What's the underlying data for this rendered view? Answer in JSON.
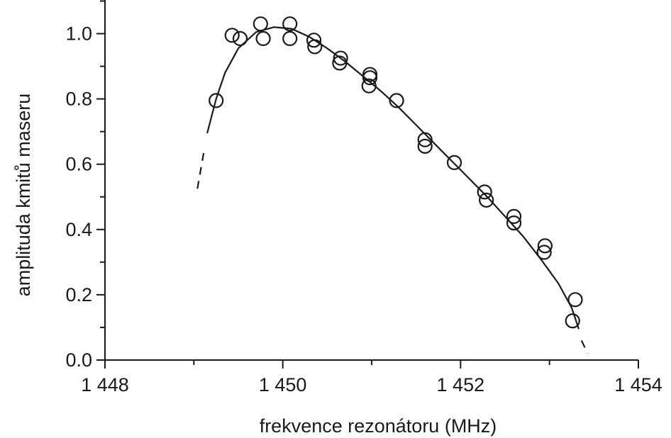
{
  "chart_data": {
    "type": "scatter",
    "xlabel": "frekvence rezonátoru (MHz)",
    "ylabel": "amplituda kmitů maseru",
    "xlim": [
      1448,
      1454
    ],
    "ylim": [
      0.0,
      1.1
    ],
    "x_ticks": [
      1448,
      1450,
      1452,
      1454
    ],
    "x_tick_labels": [
      "1 448",
      "1 450",
      "1 452",
      "1 454"
    ],
    "y_ticks": [
      0.0,
      0.2,
      0.4,
      0.6,
      0.8,
      1.0
    ],
    "y_tick_labels": [
      "0.0",
      "0.2",
      "0.4",
      "0.6",
      "0.8",
      "1.0"
    ],
    "grid": false,
    "marker": "open-circle",
    "points": [
      {
        "x": 1449.25,
        "y": 0.795
      },
      {
        "x": 1449.43,
        "y": 0.995
      },
      {
        "x": 1449.52,
        "y": 0.985
      },
      {
        "x": 1449.75,
        "y": 1.03
      },
      {
        "x": 1449.78,
        "y": 0.985
      },
      {
        "x": 1450.08,
        "y": 1.03
      },
      {
        "x": 1450.08,
        "y": 0.985
      },
      {
        "x": 1450.35,
        "y": 0.98
      },
      {
        "x": 1450.36,
        "y": 0.96
      },
      {
        "x": 1450.65,
        "y": 0.925
      },
      {
        "x": 1450.64,
        "y": 0.91
      },
      {
        "x": 1450.98,
        "y": 0.875
      },
      {
        "x": 1450.98,
        "y": 0.865
      },
      {
        "x": 1450.97,
        "y": 0.84
      },
      {
        "x": 1451.28,
        "y": 0.795
      },
      {
        "x": 1451.6,
        "y": 0.675
      },
      {
        "x": 1451.6,
        "y": 0.655
      },
      {
        "x": 1451.93,
        "y": 0.605
      },
      {
        "x": 1452.27,
        "y": 0.515
      },
      {
        "x": 1452.29,
        "y": 0.49
      },
      {
        "x": 1452.6,
        "y": 0.44
      },
      {
        "x": 1452.6,
        "y": 0.42
      },
      {
        "x": 1452.95,
        "y": 0.35
      },
      {
        "x": 1452.94,
        "y": 0.33
      },
      {
        "x": 1453.29,
        "y": 0.185
      },
      {
        "x": 1453.26,
        "y": 0.12
      }
    ],
    "fit_curve": [
      [
        1449.15,
        0.695
      ],
      [
        1449.25,
        0.8
      ],
      [
        1449.35,
        0.88
      ],
      [
        1449.5,
        0.955
      ],
      [
        1449.7,
        1.005
      ],
      [
        1449.9,
        1.02
      ],
      [
        1450.1,
        1.015
      ],
      [
        1450.3,
        0.99
      ],
      [
        1450.5,
        0.955
      ],
      [
        1450.7,
        0.915
      ],
      [
        1450.9,
        0.87
      ],
      [
        1451.1,
        0.825
      ],
      [
        1451.3,
        0.775
      ],
      [
        1451.5,
        0.72
      ],
      [
        1451.7,
        0.665
      ],
      [
        1451.9,
        0.61
      ],
      [
        1452.1,
        0.555
      ],
      [
        1452.3,
        0.5
      ],
      [
        1452.5,
        0.44
      ],
      [
        1452.7,
        0.38
      ],
      [
        1452.9,
        0.31
      ],
      [
        1453.1,
        0.235
      ],
      [
        1453.25,
        0.16
      ],
      [
        1453.33,
        0.095
      ]
    ],
    "fit_dashed_low": [
      [
        1449.04,
        0.525
      ],
      [
        1449.12,
        0.65
      ]
    ],
    "fit_dashed_high": [
      [
        1453.36,
        0.06
      ],
      [
        1453.43,
        0.02
      ]
    ]
  }
}
